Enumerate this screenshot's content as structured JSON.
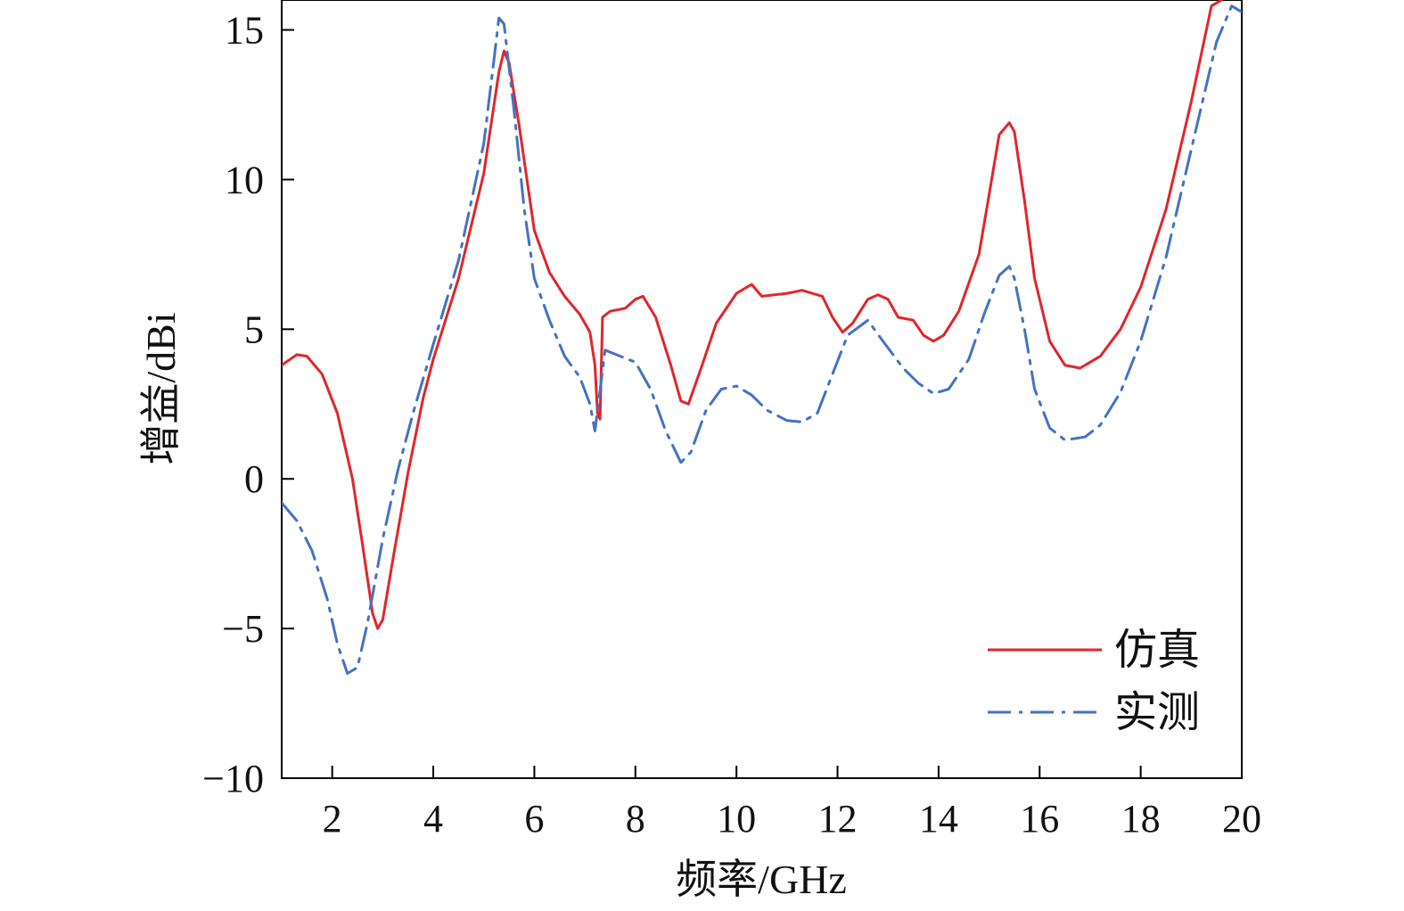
{
  "chart_data": {
    "type": "line",
    "xlabel": "频率/GHz",
    "ylabel": "增益/dBi",
    "xlim": [
      1,
      20
    ],
    "ylim": [
      -10,
      16
    ],
    "x_ticks": [
      2,
      4,
      6,
      8,
      10,
      12,
      14,
      16,
      18,
      20
    ],
    "y_ticks": [
      -10,
      -5,
      0,
      5,
      10,
      15
    ],
    "x_tick_labels": [
      "2",
      "4",
      "6",
      "8",
      "10",
      "12",
      "14",
      "16",
      "18",
      "20"
    ],
    "y_tick_labels": [
      "−10",
      "−5",
      "0",
      "5",
      "10",
      "15"
    ],
    "grid": false,
    "legend_position": "bottom-right",
    "series": [
      {
        "name": "仿真",
        "color": "#e0262b",
        "style": "solid",
        "points": [
          [
            1.0,
            3.8
          ],
          [
            1.3,
            4.15
          ],
          [
            1.5,
            4.1
          ],
          [
            1.8,
            3.5
          ],
          [
            2.1,
            2.2
          ],
          [
            2.4,
            0.0
          ],
          [
            2.6,
            -2.2
          ],
          [
            2.8,
            -4.5
          ],
          [
            2.9,
            -5.0
          ],
          [
            3.0,
            -4.7
          ],
          [
            3.2,
            -2.7
          ],
          [
            3.5,
            0.2
          ],
          [
            3.8,
            2.7
          ],
          [
            4.0,
            4.0
          ],
          [
            4.5,
            6.7
          ],
          [
            5.0,
            10.2
          ],
          [
            5.3,
            13.6
          ],
          [
            5.4,
            14.3
          ],
          [
            5.5,
            13.9
          ],
          [
            5.7,
            11.8
          ],
          [
            6.0,
            8.3
          ],
          [
            6.3,
            6.9
          ],
          [
            6.6,
            6.1
          ],
          [
            6.9,
            5.5
          ],
          [
            7.1,
            4.9
          ],
          [
            7.2,
            3.8
          ],
          [
            7.25,
            2.2
          ],
          [
            7.3,
            2.0
          ],
          [
            7.35,
            5.4
          ],
          [
            7.5,
            5.6
          ],
          [
            7.8,
            5.7
          ],
          [
            8.0,
            6.0
          ],
          [
            8.15,
            6.1
          ],
          [
            8.4,
            5.4
          ],
          [
            8.7,
            3.8
          ],
          [
            8.9,
            2.6
          ],
          [
            9.05,
            2.5
          ],
          [
            9.3,
            3.7
          ],
          [
            9.6,
            5.2
          ],
          [
            10.0,
            6.2
          ],
          [
            10.3,
            6.5
          ],
          [
            10.5,
            6.1
          ],
          [
            11.0,
            6.2
          ],
          [
            11.3,
            6.3
          ],
          [
            11.7,
            6.1
          ],
          [
            11.9,
            5.4
          ],
          [
            12.1,
            4.9
          ],
          [
            12.3,
            5.2
          ],
          [
            12.6,
            6.0
          ],
          [
            12.8,
            6.15
          ],
          [
            13.0,
            6.0
          ],
          [
            13.2,
            5.4
          ],
          [
            13.5,
            5.3
          ],
          [
            13.7,
            4.8
          ],
          [
            13.9,
            4.6
          ],
          [
            14.1,
            4.8
          ],
          [
            14.4,
            5.6
          ],
          [
            14.8,
            7.5
          ],
          [
            15.0,
            9.5
          ],
          [
            15.2,
            11.5
          ],
          [
            15.4,
            11.9
          ],
          [
            15.5,
            11.6
          ],
          [
            15.7,
            9.3
          ],
          [
            15.9,
            6.7
          ],
          [
            16.2,
            4.6
          ],
          [
            16.5,
            3.8
          ],
          [
            16.8,
            3.7
          ],
          [
            17.2,
            4.1
          ],
          [
            17.6,
            5.0
          ],
          [
            18.0,
            6.4
          ],
          [
            18.5,
            9.0
          ],
          [
            19.0,
            12.6
          ],
          [
            19.4,
            15.8
          ],
          [
            19.6,
            16.0
          ]
        ]
      },
      {
        "name": "实测",
        "color": "#4472c4",
        "style": "dashdot",
        "points": [
          [
            1.0,
            -0.8
          ],
          [
            1.3,
            -1.4
          ],
          [
            1.6,
            -2.4
          ],
          [
            1.9,
            -4.0
          ],
          [
            2.1,
            -5.5
          ],
          [
            2.3,
            -6.5
          ],
          [
            2.5,
            -6.3
          ],
          [
            2.7,
            -4.8
          ],
          [
            3.0,
            -2.0
          ],
          [
            3.3,
            0.3
          ],
          [
            3.6,
            2.2
          ],
          [
            4.0,
            4.5
          ],
          [
            4.5,
            7.3
          ],
          [
            5.0,
            11.2
          ],
          [
            5.2,
            14.0
          ],
          [
            5.3,
            15.4
          ],
          [
            5.4,
            15.2
          ],
          [
            5.6,
            12.3
          ],
          [
            5.8,
            9.0
          ],
          [
            6.0,
            6.7
          ],
          [
            6.3,
            5.3
          ],
          [
            6.6,
            4.1
          ],
          [
            6.9,
            3.4
          ],
          [
            7.1,
            2.5
          ],
          [
            7.2,
            1.6
          ],
          [
            7.4,
            4.3
          ],
          [
            7.7,
            4.1
          ],
          [
            8.0,
            3.9
          ],
          [
            8.3,
            3.0
          ],
          [
            8.6,
            1.6
          ],
          [
            8.9,
            0.55
          ],
          [
            9.1,
            0.9
          ],
          [
            9.4,
            2.3
          ],
          [
            9.7,
            3.0
          ],
          [
            10.0,
            3.1
          ],
          [
            10.3,
            2.8
          ],
          [
            10.6,
            2.3
          ],
          [
            11.0,
            1.95
          ],
          [
            11.3,
            1.9
          ],
          [
            11.6,
            2.2
          ],
          [
            11.9,
            3.5
          ],
          [
            12.2,
            4.8
          ],
          [
            12.6,
            5.3
          ],
          [
            12.9,
            4.6
          ],
          [
            13.3,
            3.7
          ],
          [
            13.6,
            3.2
          ],
          [
            13.9,
            2.85
          ],
          [
            14.2,
            3.0
          ],
          [
            14.6,
            4.0
          ],
          [
            14.9,
            5.5
          ],
          [
            15.2,
            6.8
          ],
          [
            15.4,
            7.1
          ],
          [
            15.5,
            6.7
          ],
          [
            15.7,
            5.0
          ],
          [
            15.9,
            3.0
          ],
          [
            16.2,
            1.7
          ],
          [
            16.5,
            1.3
          ],
          [
            16.9,
            1.4
          ],
          [
            17.2,
            1.8
          ],
          [
            17.6,
            2.9
          ],
          [
            18.0,
            4.6
          ],
          [
            18.5,
            7.4
          ],
          [
            19.0,
            11.0
          ],
          [
            19.5,
            14.6
          ],
          [
            19.8,
            15.8
          ],
          [
            20.0,
            15.6
          ]
        ]
      }
    ]
  }
}
